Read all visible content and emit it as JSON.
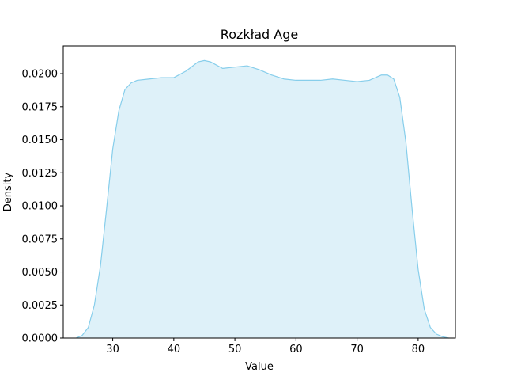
{
  "chart_data": {
    "type": "area",
    "title": "Rozkład Age",
    "xlabel": "Value",
    "ylabel": "Density",
    "xlim": [
      21.9,
      86.1
    ],
    "ylim": [
      0,
      0.0221
    ],
    "xticks": [
      30,
      40,
      50,
      60,
      70,
      80
    ],
    "yticks": [
      0.0,
      0.0025,
      0.005,
      0.0075,
      0.01,
      0.0125,
      0.015,
      0.0175,
      0.02
    ],
    "xtick_labels": [
      "30",
      "40",
      "50",
      "60",
      "70",
      "80"
    ],
    "ytick_labels": [
      "0.0000",
      "0.0025",
      "0.0050",
      "0.0075",
      "0.0100",
      "0.0125",
      "0.0150",
      "0.0175",
      "0.0200"
    ],
    "grid": false,
    "series": [
      {
        "fill_color": "#87CEEB",
        "line_color": "#87CEEB",
        "x": [
          24.0,
          25.0,
          26.0,
          27.0,
          28.0,
          29.0,
          30.0,
          31.0,
          32.0,
          33.0,
          34.0,
          36.0,
          38.0,
          40.0,
          42.0,
          44.0,
          45.0,
          46.0,
          48.0,
          50.0,
          52.0,
          54.0,
          56.0,
          58.0,
          60.0,
          62.0,
          64.0,
          66.0,
          68.0,
          70.0,
          72.0,
          74.0,
          75.0,
          76.0,
          77.0,
          78.0,
          79.0,
          80.0,
          81.0,
          82.0,
          83.0,
          84.0,
          85.0
        ],
        "y": [
          0.0,
          0.0002,
          0.0008,
          0.0025,
          0.0055,
          0.0098,
          0.0143,
          0.0172,
          0.0188,
          0.0193,
          0.0195,
          0.0196,
          0.0197,
          0.0197,
          0.0202,
          0.0209,
          0.021,
          0.0209,
          0.0204,
          0.0205,
          0.0206,
          0.0203,
          0.0199,
          0.0196,
          0.0195,
          0.0195,
          0.0195,
          0.0196,
          0.0195,
          0.0194,
          0.0195,
          0.0199,
          0.0199,
          0.0196,
          0.0182,
          0.0148,
          0.0098,
          0.0052,
          0.0022,
          0.0008,
          0.0003,
          0.0001,
          0.0
        ]
      }
    ]
  }
}
